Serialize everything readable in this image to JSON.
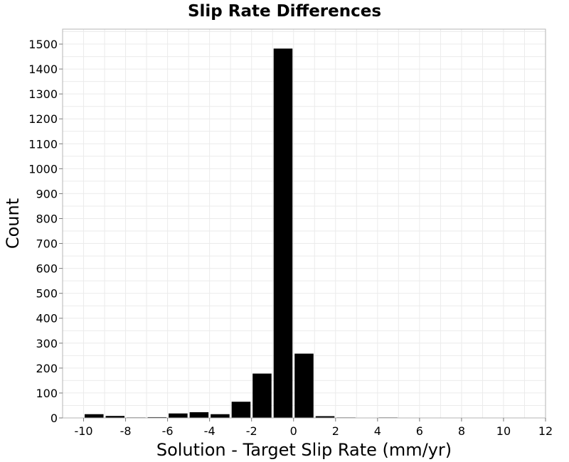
{
  "chart_data": {
    "type": "bar",
    "title": "Slip Rate Differences",
    "xlabel": "Solution - Target Slip Rate (mm/yr)",
    "ylabel": "Count",
    "xlim": [
      -11,
      12
    ],
    "ylim": [
      0,
      1560
    ],
    "bin_width": 1,
    "bar_centers": [
      -9.5,
      -8.5,
      -7.5,
      -6.5,
      -5.5,
      -4.5,
      -3.5,
      -2.5,
      -1.5,
      -0.5,
      0.5,
      1.5,
      2.5,
      3.5,
      4.5,
      5.5,
      6.5,
      7.5,
      8.5,
      9.5,
      10.5,
      11.5
    ],
    "values": [
      15,
      8,
      2,
      3,
      18,
      23,
      15,
      65,
      178,
      1482,
      258,
      7,
      2,
      0,
      2,
      1,
      0,
      0,
      0,
      0,
      0,
      0
    ],
    "x_ticks": [
      -10,
      -8,
      -6,
      -4,
      -2,
      0,
      2,
      4,
      6,
      8,
      10,
      12
    ],
    "y_ticks": [
      0,
      100,
      200,
      300,
      400,
      500,
      600,
      700,
      800,
      900,
      1000,
      1100,
      1200,
      1300,
      1400,
      1500
    ],
    "grid": true,
    "bar_color": "#000000",
    "grid_color": "#ebebeb",
    "frame_color": "#b4b4b4"
  }
}
